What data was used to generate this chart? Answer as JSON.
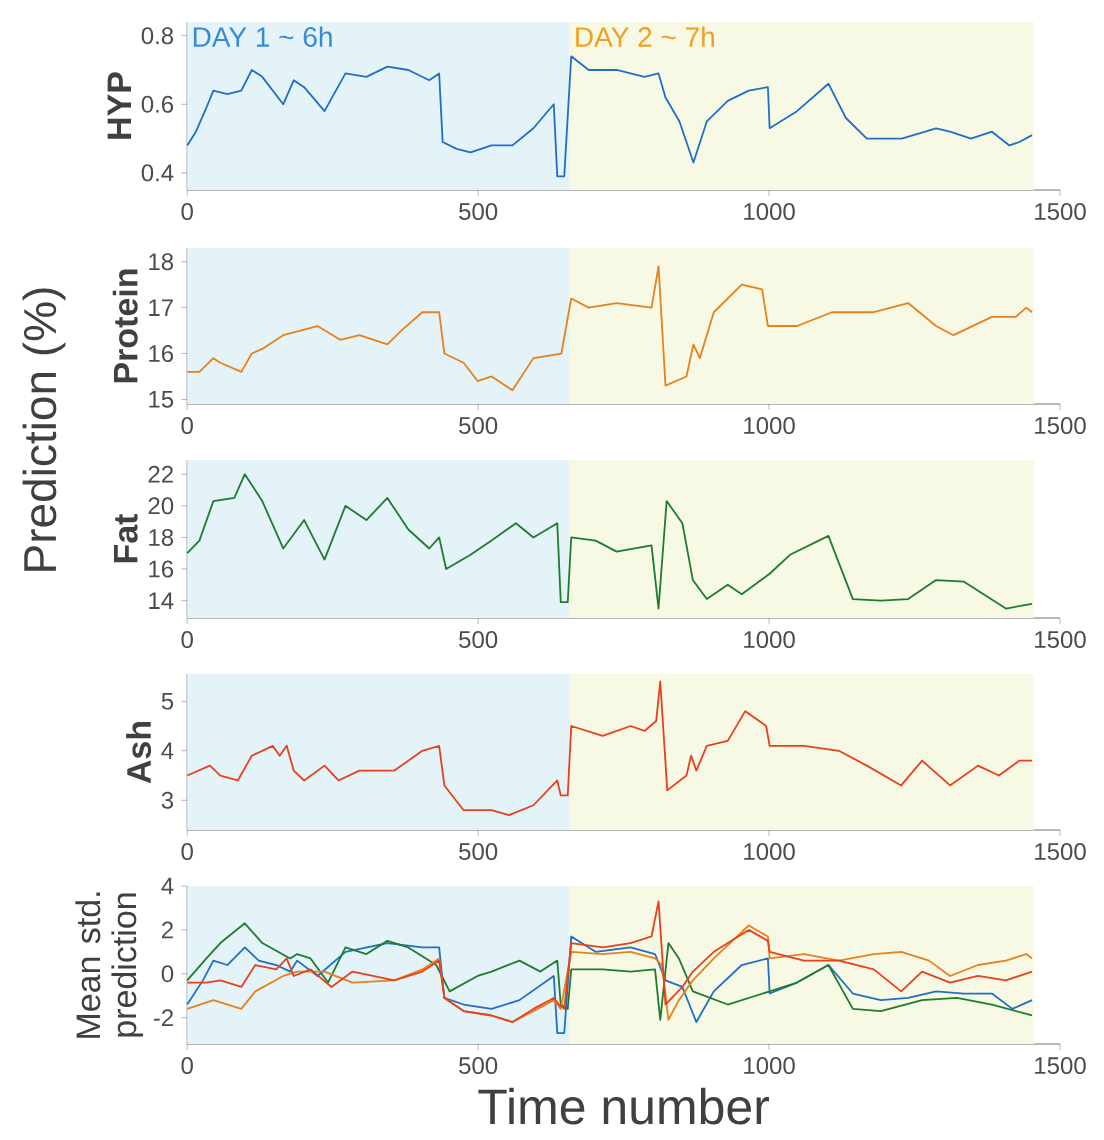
{
  "chart_data": [
    {
      "type": "line",
      "ylabel": "HYP",
      "color": "#1f6fc5",
      "annotations": [
        "Prediction (%)"
      ],
      "x": [
        0,
        15,
        33,
        45,
        69,
        93,
        111,
        129,
        165,
        183,
        201,
        236,
        272,
        308,
        344,
        380,
        416,
        433,
        439,
        463,
        487,
        523,
        559,
        595,
        630,
        636,
        648,
        660,
        690,
        738,
        786,
        810,
        822,
        846,
        870,
        893,
        929,
        965,
        998,
        1001,
        1048,
        1102,
        1132,
        1168,
        1228,
        1287,
        1311,
        1347,
        1383,
        1413,
        1430,
        1452
      ],
      "values": [
        0.48,
        0.52,
        0.59,
        0.64,
        0.63,
        0.64,
        0.7,
        0.68,
        0.6,
        0.67,
        0.65,
        0.58,
        0.69,
        0.68,
        0.71,
        0.7,
        0.67,
        0.69,
        0.49,
        0.47,
        0.46,
        0.48,
        0.48,
        0.53,
        0.6,
        0.39,
        0.39,
        0.74,
        0.7,
        0.7,
        0.68,
        0.69,
        0.62,
        0.55,
        0.43,
        0.55,
        0.61,
        0.64,
        0.65,
        0.53,
        0.58,
        0.66,
        0.56,
        0.5,
        0.5,
        0.53,
        0.52,
        0.5,
        0.52,
        0.48,
        0.49,
        0.51
      ],
      "xlim": [
        0,
        1500
      ],
      "xticks": [
        0,
        500,
        1000,
        1500
      ],
      "ylim": [
        0.35,
        0.84
      ],
      "yticks": [
        0.4,
        0.6,
        0.8
      ],
      "bands": [
        {
          "axis": "x",
          "from": 0,
          "to": 657,
          "label": "DAY 1 ~ 6h",
          "color": "#e3f3f8"
        },
        {
          "axis": "x",
          "from": 657,
          "to": 1455,
          "label": "DAY 2 ~ 7h",
          "color": "#f7f9e4"
        }
      ]
    },
    {
      "type": "line",
      "ylabel": "Protein",
      "color": "#e8801c",
      "x": [
        0,
        21,
        45,
        57,
        93,
        111,
        129,
        165,
        224,
        263,
        296,
        344,
        368,
        404,
        433,
        442,
        475,
        499,
        523,
        559,
        595,
        643,
        660,
        690,
        738,
        798,
        810,
        822,
        858,
        870,
        881,
        905,
        953,
        988,
        998,
        1048,
        1108,
        1180,
        1239,
        1287,
        1317,
        1383,
        1424,
        1442,
        1452
      ],
      "values": [
        15.6,
        15.6,
        15.9,
        15.8,
        15.6,
        16.0,
        16.1,
        16.4,
        16.6,
        16.3,
        16.4,
        16.2,
        16.5,
        16.9,
        16.9,
        16.0,
        15.8,
        15.4,
        15.5,
        15.2,
        15.9,
        16.0,
        17.2,
        17.0,
        17.1,
        17.0,
        17.9,
        15.3,
        15.5,
        16.2,
        15.9,
        16.9,
        17.5,
        17.4,
        16.6,
        16.6,
        16.9,
        16.9,
        17.1,
        16.6,
        16.4,
        16.8,
        16.8,
        17.0,
        16.9
      ],
      "xlim": [
        0,
        1500
      ],
      "xticks": [
        0,
        500,
        1000,
        1500
      ],
      "ylim": [
        14.9,
        18.3
      ],
      "yticks": [
        15,
        16,
        17,
        18
      ],
      "bands": [
        {
          "axis": "x",
          "from": 0,
          "to": 657,
          "color": "#e3f3f8"
        },
        {
          "axis": "x",
          "from": 657,
          "to": 1455,
          "color": "#f7f9e4"
        }
      ]
    },
    {
      "type": "line",
      "ylabel": "Fat",
      "color": "#1e7b30",
      "x": [
        0,
        21,
        45,
        81,
        99,
        129,
        165,
        201,
        236,
        272,
        308,
        344,
        380,
        416,
        433,
        445,
        487,
        523,
        565,
        595,
        636,
        642,
        654,
        660,
        702,
        738,
        798,
        810,
        824,
        851,
        869,
        893,
        929,
        953,
        1001,
        1036,
        1102,
        1144,
        1192,
        1239,
        1287,
        1335,
        1407,
        1452
      ],
      "values": [
        17.0,
        17.8,
        20.3,
        20.5,
        22.0,
        20.3,
        17.3,
        19.1,
        16.6,
        20.0,
        19.1,
        20.5,
        18.5,
        17.3,
        18.0,
        16.0,
        16.9,
        17.8,
        18.9,
        18.0,
        18.9,
        13.9,
        13.9,
        18.0,
        17.8,
        17.1,
        17.5,
        13.5,
        20.3,
        18.9,
        15.3,
        14.1,
        15.0,
        14.4,
        15.7,
        16.9,
        18.1,
        14.1,
        14.0,
        14.1,
        15.3,
        15.2,
        13.5,
        13.8
      ],
      "xlim": [
        0,
        1500
      ],
      "xticks": [
        0,
        500,
        1000,
        1500
      ],
      "ylim": [
        12.9,
        22.9
      ],
      "yticks": [
        14,
        16,
        18,
        20,
        22
      ],
      "bands": [
        {
          "axis": "x",
          "from": 0,
          "to": 657,
          "color": "#e3f3f8"
        },
        {
          "axis": "x",
          "from": 657,
          "to": 1455,
          "color": "#f7f9e4"
        }
      ]
    },
    {
      "type": "line",
      "ylabel": "Ash",
      "color": "#e8401c",
      "x": [
        0,
        39,
        57,
        87,
        111,
        147,
        159,
        171,
        183,
        201,
        236,
        260,
        296,
        356,
        404,
        433,
        442,
        475,
        523,
        553,
        595,
        636,
        642,
        654,
        660,
        714,
        762,
        786,
        806,
        813,
        825,
        858,
        866,
        875,
        893,
        929,
        959,
        995,
        1001,
        1060,
        1120,
        1168,
        1227,
        1263,
        1311,
        1359,
        1395,
        1430,
        1452
      ],
      "values": [
        3.5,
        3.7,
        3.5,
        3.4,
        3.9,
        4.1,
        3.9,
        4.1,
        3.6,
        3.4,
        3.7,
        3.4,
        3.6,
        3.6,
        4.0,
        4.1,
        3.3,
        2.8,
        2.8,
        2.7,
        2.9,
        3.4,
        3.1,
        3.1,
        4.5,
        4.3,
        4.5,
        4.4,
        4.6,
        5.4,
        3.2,
        3.5,
        3.9,
        3.6,
        4.1,
        4.2,
        4.8,
        4.5,
        4.1,
        4.1,
        4.0,
        3.7,
        3.3,
        3.8,
        3.3,
        3.7,
        3.5,
        3.8,
        3.8
      ],
      "xlim": [
        0,
        1500
      ],
      "xticks": [
        0,
        500,
        1000,
        1500
      ],
      "ylim": [
        2.4,
        5.55
      ],
      "yticks": [
        3,
        4,
        5
      ],
      "bands": [
        {
          "axis": "x",
          "from": 0,
          "to": 657,
          "color": "#e3f3f8"
        },
        {
          "axis": "x",
          "from": 657,
          "to": 1455,
          "color": "#f7f9e4"
        }
      ]
    },
    {
      "type": "line",
      "ylabel": "Mean std. prediction",
      "xlabel": "Time number",
      "series": [
        {
          "color": "#1f6fc5",
          "x": [
            0,
            27,
            45,
            69,
            99,
            123,
            153,
            177,
            189,
            224,
            272,
            344,
            404,
            433,
            442,
            475,
            523,
            571,
            630,
            636,
            648,
            660,
            702,
            762,
            804,
            822,
            851,
            875,
            905,
            953,
            998,
            1001,
            1048,
            1102,
            1144,
            1192,
            1239,
            1287,
            1335,
            1383,
            1418,
            1452
          ],
          "values": [
            -1.4,
            -0.3,
            0.6,
            0.4,
            1.2,
            0.6,
            0.4,
            0.1,
            0.6,
            -0.1,
            1.0,
            1.4,
            1.2,
            1.2,
            -1.1,
            -1.4,
            -1.6,
            -1.2,
            -0.1,
            -2.7,
            -2.7,
            1.7,
            1.0,
            1.2,
            0.9,
            -0.3,
            -0.6,
            -2.2,
            -0.8,
            0.4,
            0.7,
            -0.9,
            -0.4,
            0.4,
            -0.9,
            -1.2,
            -1.1,
            -0.8,
            -0.9,
            -0.9,
            -1.6,
            -1.2
          ]
        },
        {
          "color": "#1e7b30",
          "x": [
            0,
            33,
            57,
            99,
            129,
            177,
            189,
            212,
            242,
            272,
            308,
            344,
            380,
            428,
            451,
            499,
            523,
            571,
            607,
            636,
            642,
            654,
            660,
            714,
            762,
            804,
            813,
            827,
            845,
            869,
            929,
            1001,
            1048,
            1102,
            1144,
            1192,
            1263,
            1323,
            1383,
            1452
          ],
          "values": [
            -0.3,
            0.7,
            1.4,
            2.3,
            1.4,
            0.7,
            0.9,
            0.7,
            -0.4,
            1.2,
            0.9,
            1.5,
            1.2,
            0.4,
            -0.8,
            -0.1,
            0.1,
            0.6,
            0.1,
            0.6,
            -1.4,
            -1.6,
            0.2,
            0.2,
            0.1,
            0.2,
            -2.1,
            1.4,
            0.7,
            -0.8,
            -1.4,
            -0.8,
            -0.4,
            0.4,
            -1.6,
            -1.7,
            -1.2,
            -1.1,
            -1.4,
            -1.9
          ]
        },
        {
          "color": "#e8801c",
          "x": [
            0,
            45,
            93,
            117,
            165,
            189,
            236,
            284,
            356,
            404,
            433,
            442,
            475,
            523,
            559,
            595,
            630,
            642,
            660,
            714,
            762,
            804,
            816,
            827,
            845,
            869,
            905,
            965,
            998,
            1001,
            1060,
            1120,
            1180,
            1227,
            1275,
            1311,
            1359,
            1407,
            1442,
            1452
          ],
          "values": [
            -1.6,
            -1.2,
            -1.6,
            -0.8,
            -0.1,
            0.1,
            0.1,
            -0.4,
            -0.3,
            0.2,
            0.7,
            -1.1,
            -1.7,
            -1.9,
            -2.2,
            -1.7,
            -1.2,
            -1.6,
            1.0,
            0.9,
            1.0,
            0.7,
            0.4,
            -2.1,
            -1.2,
            -0.3,
            0.7,
            2.2,
            1.7,
            0.7,
            0.9,
            0.6,
            0.9,
            1.0,
            0.6,
            -0.1,
            0.4,
            0.6,
            0.9,
            0.7
          ]
        },
        {
          "color": "#e8401c",
          "x": [
            0,
            33,
            57,
            93,
            117,
            153,
            171,
            183,
            212,
            248,
            284,
            356,
            404,
            433,
            442,
            475,
            523,
            559,
            595,
            630,
            639,
            648,
            660,
            714,
            762,
            798,
            810,
            822,
            851,
            869,
            905,
            965,
            998,
            1001,
            1060,
            1120,
            1180,
            1227,
            1263,
            1311,
            1359,
            1407,
            1452
          ],
          "values": [
            -0.4,
            -0.4,
            -0.3,
            -0.6,
            0.4,
            0.2,
            0.7,
            -0.1,
            0.2,
            -0.6,
            0.1,
            -0.3,
            0.1,
            0.6,
            -1.1,
            -1.7,
            -1.9,
            -2.2,
            -1.6,
            -1.1,
            -1.4,
            -1.6,
            1.4,
            1.2,
            1.4,
            1.7,
            3.3,
            -1.4,
            -0.6,
            0.1,
            1.0,
            2.0,
            1.5,
            1.0,
            0.6,
            0.6,
            0.2,
            -0.8,
            0.1,
            -0.4,
            -0.1,
            -0.3,
            0.1
          ]
        }
      ],
      "xlim": [
        0,
        1500
      ],
      "xticks": [
        0,
        500,
        1000,
        1500
      ],
      "ylim": [
        -3.2,
        4
      ],
      "yticks": [
        -2,
        0,
        2,
        4
      ],
      "bands": [
        {
          "axis": "x",
          "from": 0,
          "to": 657,
          "color": "#e3f3f8"
        },
        {
          "axis": "x",
          "from": 657,
          "to": 1455,
          "color": "#f7f9e4"
        }
      ]
    }
  ]
}
